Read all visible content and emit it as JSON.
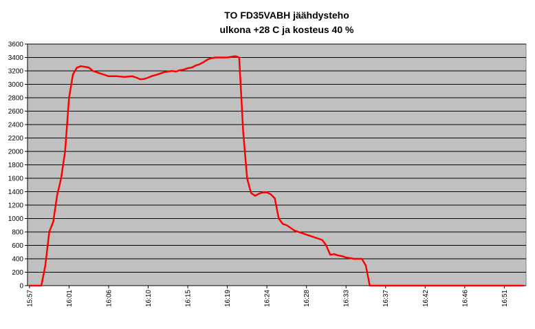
{
  "chart_data": {
    "type": "line",
    "title": "TO FD35VABH jäähdysteho",
    "subtitle": "ulkona +28 C ja kosteus 40 %",
    "categories": [
      "15:57",
      null,
      null,
      null,
      null,
      null,
      null,
      null,
      null,
      null,
      "16:01",
      null,
      null,
      null,
      null,
      null,
      null,
      null,
      null,
      null,
      "16:06",
      null,
      null,
      null,
      null,
      null,
      null,
      null,
      null,
      null,
      "16:10",
      null,
      null,
      null,
      null,
      null,
      null,
      null,
      null,
      null,
      "16:15",
      null,
      null,
      null,
      null,
      null,
      null,
      null,
      null,
      null,
      "16:19",
      null,
      null,
      null,
      null,
      null,
      null,
      null,
      null,
      null,
      "16:24",
      null,
      null,
      null,
      null,
      null,
      null,
      null,
      null,
      null,
      "16:28",
      null,
      null,
      null,
      null,
      null,
      null,
      null,
      null,
      null,
      "16:33",
      null,
      null,
      null,
      null,
      null,
      null,
      null,
      null,
      null,
      "16:37",
      null,
      null,
      null,
      null,
      null,
      null,
      null,
      null,
      null,
      "16:42",
      null,
      null,
      null,
      null,
      null,
      null,
      null,
      null,
      null,
      "16:46",
      null,
      null,
      null,
      null,
      null,
      null,
      null,
      null,
      null,
      "16:51",
      null,
      null,
      null,
      null,
      null
    ],
    "values": [
      0,
      0,
      0,
      0,
      300,
      800,
      950,
      1350,
      1600,
      2000,
      2800,
      3150,
      3250,
      3270,
      3260,
      3250,
      3200,
      3180,
      3160,
      3140,
      3120,
      3120,
      3120,
      3115,
      3110,
      3115,
      3120,
      3100,
      3075,
      3080,
      3100,
      3125,
      3140,
      3160,
      3180,
      3190,
      3200,
      3190,
      3210,
      3220,
      3240,
      3250,
      3280,
      3300,
      3330,
      3370,
      3390,
      3400,
      3400,
      3400,
      3400,
      3410,
      3420,
      3400,
      2300,
      1600,
      1380,
      1340,
      1370,
      1390,
      1390,
      1360,
      1300,
      1000,
      920,
      900,
      860,
      820,
      800,
      780,
      760,
      740,
      720,
      700,
      680,
      600,
      460,
      470,
      450,
      440,
      420,
      410,
      400,
      400,
      400,
      300,
      0,
      0,
      0,
      0,
      0,
      0,
      0,
      0,
      0,
      0,
      0,
      0,
      0,
      0,
      0,
      0,
      0,
      0,
      0,
      0,
      0,
      0,
      0,
      0,
      0,
      0,
      0,
      0,
      0,
      0,
      0,
      0,
      0,
      0,
      0,
      0,
      0,
      0,
      0,
      0
    ],
    "color": "#ff0000",
    "ylim": [
      0,
      3600
    ],
    "yticks": [
      0,
      200,
      400,
      600,
      800,
      1000,
      1200,
      1400,
      1600,
      1800,
      2000,
      2200,
      2400,
      2600,
      2800,
      3000,
      3200,
      3400,
      3600
    ],
    "grid": true
  }
}
